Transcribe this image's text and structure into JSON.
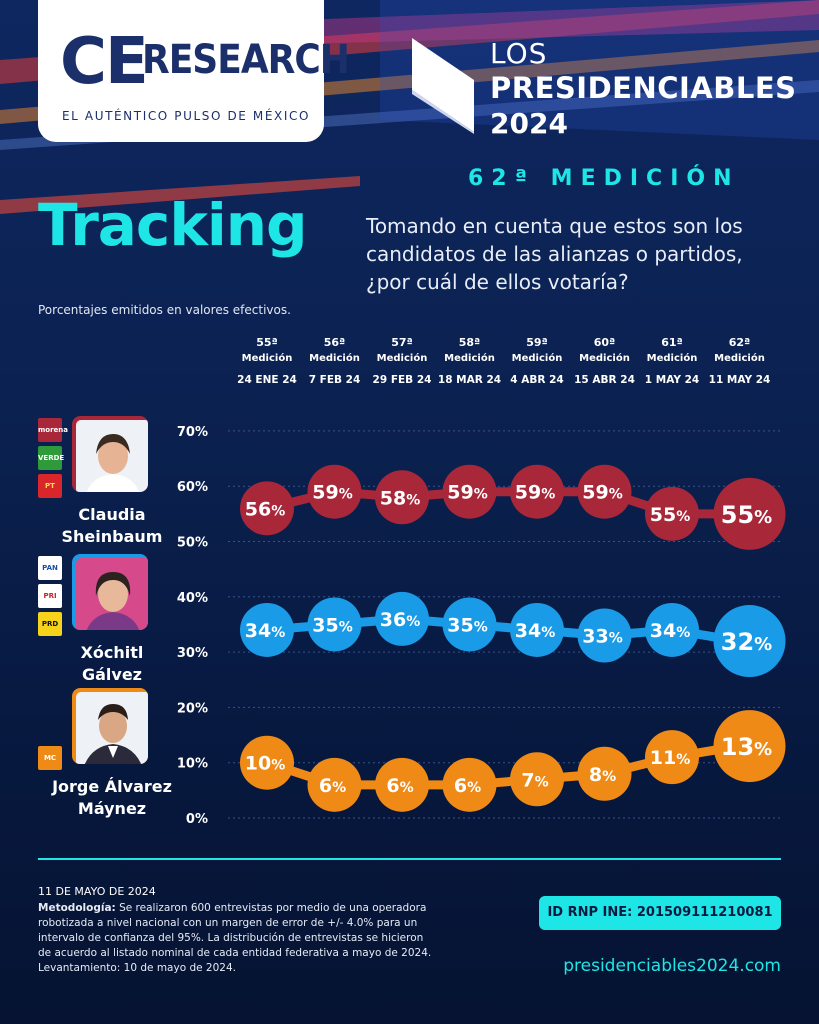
{
  "header": {
    "logo_ce": "CE",
    "logo_research": "RESEARCH",
    "logo_tagline": "EL AUTÉNTICO PULSO DE MÉXICO",
    "brand_line1": "LOS",
    "brand_line2": "PRESIDENCIABLES",
    "brand_line3": "2024",
    "medicion": "62ª MEDICIÓN"
  },
  "title": "Tracking",
  "question": "Tomando en cuenta que estos son los candidatos de las alianzas o partidos, ¿por cuál de ellos votaría?",
  "note": "Porcentajes emitidos en valores efectivos.",
  "colors": {
    "sheinbaum": "#a8283a",
    "galvez": "#1a9be8",
    "maynez": "#f08a17",
    "accent": "#1ee6e6"
  },
  "candidates": [
    {
      "name_line1": "Claudia",
      "name_line2": "Sheinbaum",
      "parties": [
        "morena",
        "VERDE",
        "PT"
      ]
    },
    {
      "name_line1": "Xóchitl",
      "name_line2": "Gálvez",
      "parties": [
        "PAN",
        "PRI",
        "PRD"
      ]
    },
    {
      "name_line1": "Jorge Álvarez",
      "name_line2": "Máynez",
      "parties": [
        "MC"
      ]
    }
  ],
  "chart_data": {
    "type": "line",
    "categories": [
      {
        "num": "55ª",
        "label": "Medición",
        "date": "24 ENE 24"
      },
      {
        "num": "56ª",
        "label": "Medición",
        "date": "7 FEB 24"
      },
      {
        "num": "57ª",
        "label": "Medición",
        "date": "29 FEB 24"
      },
      {
        "num": "58ª",
        "label": "Medición",
        "date": "18 MAR 24"
      },
      {
        "num": "59ª",
        "label": "Medición",
        "date": "4 ABR 24"
      },
      {
        "num": "60ª",
        "label": "Medición",
        "date": "15 ABR 24"
      },
      {
        "num": "61ª",
        "label": "Medición",
        "date": "1 MAY 24"
      },
      {
        "num": "62ª",
        "label": "Medición",
        "date": "11 MAY 24"
      }
    ],
    "y_ticks": [
      "0%",
      "10%",
      "20%",
      "30%",
      "40%",
      "50%",
      "60%",
      "70%"
    ],
    "ylim": [
      0,
      70
    ],
    "series": [
      {
        "key": "sheinbaum",
        "values": [
          56,
          59,
          58,
          59,
          59,
          59,
          55,
          55
        ]
      },
      {
        "key": "galvez",
        "values": [
          34,
          35,
          36,
          35,
          34,
          33,
          34,
          32
        ]
      },
      {
        "key": "maynez",
        "values": [
          10,
          6,
          6,
          6,
          7,
          8,
          11,
          13
        ]
      }
    ]
  },
  "footer": {
    "date": "11 DE MAYO DE 2024",
    "metodologia_label": "Metodología:",
    "metodologia_text": "Se realizaron 600 entrevistas por medio de una operadora robotizada a nivel nacional con un margen de error de +/- 4.0% para un intervalo de confianza del 95%. La distribución de entrevistas se hicieron de acuerdo al listado nominal de cada entidad federativa a mayo de 2024.",
    "levantamiento": "Levantamiento: 10 de mayo de 2024.",
    "rnp": "ID RNP INE:  201509111210081",
    "site": "presidenciables2024.com"
  }
}
